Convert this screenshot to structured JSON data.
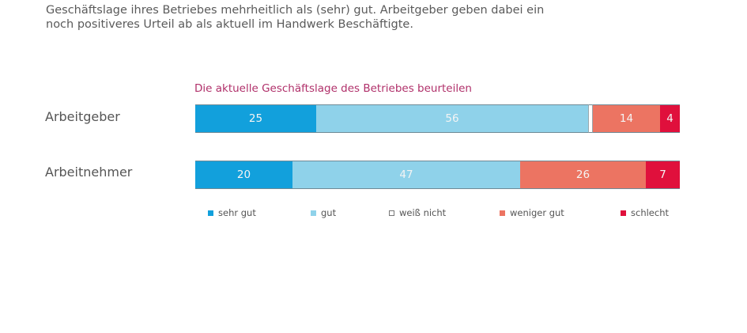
{
  "intro": {
    "line1": "Geschäftslage ihres Betriebes mehrheitlich als (sehr) gut. Arbeitgeber geben dabei ein",
    "line2": "noch positiveres Urteil ab als aktuell im Handwerk Beschäftigte."
  },
  "chart_data": {
    "type": "bar",
    "orientation": "horizontal",
    "stacked": true,
    "title": "Die aktuelle Geschäftslage des Betriebes beurteilen",
    "xlabel": "",
    "ylabel": "",
    "xlim": [
      0,
      100
    ],
    "categories": [
      "Arbeitgeber",
      "Arbeitnehmer"
    ],
    "series": [
      {
        "name": "sehr gut",
        "color": "#12a0dc",
        "values": [
          25,
          20
        ],
        "labels": [
          "25",
          "20"
        ]
      },
      {
        "name": "gut",
        "color": "#8fd2ea",
        "values": [
          56,
          47
        ],
        "labels": [
          "56",
          "47"
        ]
      },
      {
        "name": "weiß nicht",
        "color": "#ffffff",
        "values": [
          1,
          0
        ],
        "labels": [
          "",
          ""
        ]
      },
      {
        "name": "weniger gut",
        "color": "#ec7462",
        "values": [
          14,
          26
        ],
        "labels": [
          "14",
          "26"
        ]
      },
      {
        "name": "schlecht",
        "color": "#e0103c",
        "values": [
          4,
          7
        ],
        "labels": [
          "4",
          "7"
        ]
      }
    ],
    "legend_position": "bottom",
    "grid": false
  }
}
